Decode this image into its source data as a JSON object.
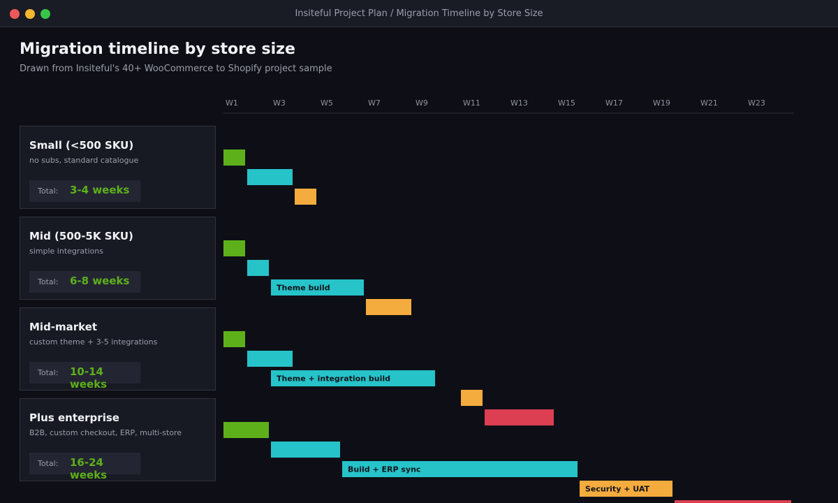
{
  "window": {
    "title": "Insiteful Project Plan / Migration Timeline by Store Size"
  },
  "page": {
    "title": "Migration timeline by store size",
    "subtitle": "Drawn from Insiteful's 40+ WooCommerce to Shopify project sample"
  },
  "colors": {
    "background": "#0e0f16",
    "card": "#181a23",
    "accent_total": "#5eb01b",
    "discovery": "#5eb01b",
    "build": "#26c3c9",
    "test": "#f5ac3e",
    "launch": "#dd3f52"
  },
  "groups": [
    {
      "name": "Small (<500 SKU)",
      "description": "no subs, standard catalogue",
      "total_label": "Total:",
      "total": "3-4 weeks"
    },
    {
      "name": "Mid (500-5K SKU)",
      "description": "simple integrations",
      "total_label": "Total:",
      "total": "6-8 weeks"
    },
    {
      "name": "Mid-market",
      "description": "custom theme + 3-5 integrations",
      "total_label": "Total:",
      "total": "10-14 weeks"
    },
    {
      "name": "Plus enterprise",
      "description": "B2B, custom checkout, ERP, multi-store",
      "total_label": "Total:",
      "total": "16-24 weeks"
    }
  ],
  "chart_data": {
    "type": "gantt",
    "x_unit": "week",
    "xlim": [
      1,
      25
    ],
    "week_ticks": [
      "W1",
      "W3",
      "W5",
      "W7",
      "W9",
      "W11",
      "W13",
      "W15",
      "W17",
      "W19",
      "W21",
      "W23"
    ],
    "rows": [
      {
        "group": 0,
        "start": 1,
        "duration": 1,
        "color": "#5eb01b",
        "label": ""
      },
      {
        "group": 0,
        "start": 2,
        "duration": 2,
        "color": "#26c3c9",
        "label": ""
      },
      {
        "group": 0,
        "start": 4,
        "duration": 1,
        "color": "#f5ac3e",
        "label": ""
      },
      {
        "group": 1,
        "start": 1,
        "duration": 1,
        "color": "#5eb01b",
        "label": ""
      },
      {
        "group": 1,
        "start": 2,
        "duration": 1,
        "color": "#26c3c9",
        "label": ""
      },
      {
        "group": 1,
        "start": 3,
        "duration": 4,
        "color": "#26c3c9",
        "label": "Theme build"
      },
      {
        "group": 1,
        "start": 7,
        "duration": 2,
        "color": "#f5ac3e",
        "label": ""
      },
      {
        "group": 2,
        "start": 1,
        "duration": 1,
        "color": "#5eb01b",
        "label": ""
      },
      {
        "group": 2,
        "start": 2,
        "duration": 2,
        "color": "#26c3c9",
        "label": ""
      },
      {
        "group": 2,
        "start": 3,
        "duration": 7,
        "color": "#26c3c9",
        "label": "Theme + integration build"
      },
      {
        "group": 2,
        "start": 11,
        "duration": 1,
        "color": "#f5ac3e",
        "label": ""
      },
      {
        "group": 2,
        "start": 12,
        "duration": 3,
        "color": "#dd3f52",
        "label": ""
      },
      {
        "group": 3,
        "start": 1,
        "duration": 2,
        "color": "#5eb01b",
        "label": ""
      },
      {
        "group": 3,
        "start": 3,
        "duration": 3,
        "color": "#26c3c9",
        "label": ""
      },
      {
        "group": 3,
        "start": 6,
        "duration": 10,
        "color": "#26c3c9",
        "label": "Build + ERP sync"
      },
      {
        "group": 3,
        "start": 16,
        "duration": 4,
        "color": "#f5ac3e",
        "label": "Security + UAT"
      },
      {
        "group": 3,
        "start": 20,
        "duration": 5,
        "color": "#dd3f52",
        "label": ""
      }
    ]
  }
}
